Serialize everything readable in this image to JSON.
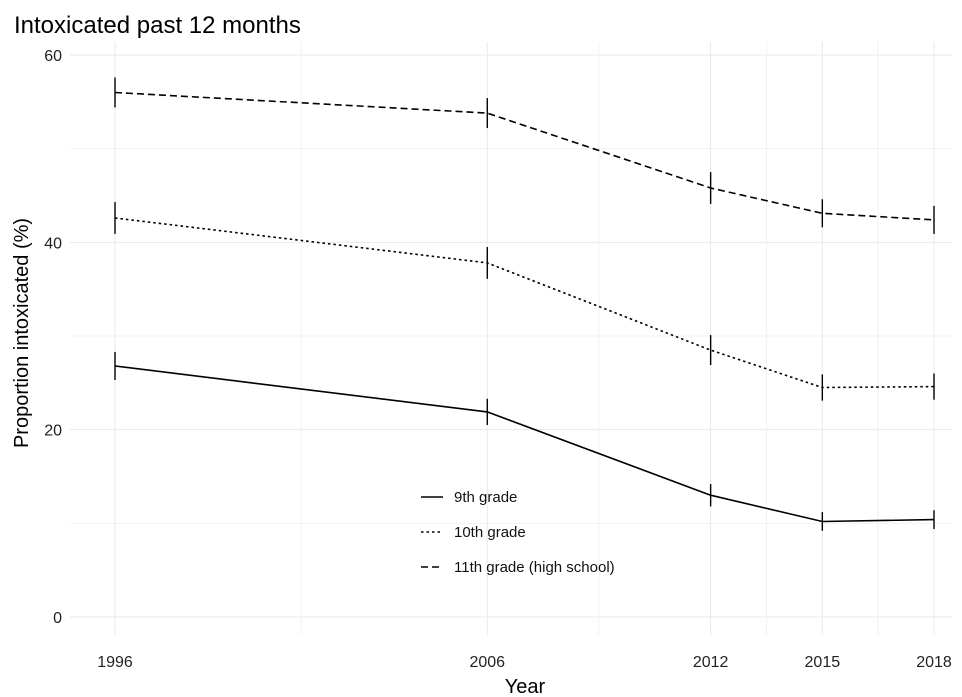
{
  "chart_data": {
    "type": "line",
    "title": "Intoxicated past 12 months",
    "xlabel": "Year",
    "ylabel": "Proportion intoxicated (%)",
    "x": [
      1996,
      2006,
      2012,
      2015,
      2018
    ],
    "xlim": [
      1996,
      2018
    ],
    "ylim": [
      0,
      60
    ],
    "yticks": [
      0,
      20,
      40,
      60
    ],
    "xtick_labels": [
      "1996",
      "2006",
      "2012",
      "2015",
      "2018"
    ],
    "ytick_labels": [
      "0",
      "20",
      "40",
      "60"
    ],
    "grid": true,
    "legend_position": "bottom-center, inside plot",
    "series": [
      {
        "name": "9th grade",
        "style": "solid",
        "values": [
          26.8,
          21.9,
          13.0,
          10.2,
          10.4
        ],
        "error": [
          1.5,
          1.4,
          1.2,
          1.0,
          1.0
        ]
      },
      {
        "name": "10th grade",
        "style": "dotted",
        "values": [
          42.6,
          37.8,
          28.5,
          24.5,
          24.6
        ],
        "error": [
          1.7,
          1.7,
          1.6,
          1.4,
          1.4
        ]
      },
      {
        "name": "11th grade (high school)",
        "style": "dashed",
        "values": [
          56.0,
          53.8,
          45.8,
          43.1,
          42.4
        ],
        "error": [
          1.6,
          1.6,
          1.7,
          1.5,
          1.5
        ]
      }
    ],
    "colors": {
      "line": "#000000",
      "grid": "#e9e9e9",
      "background": "#ffffff"
    }
  }
}
